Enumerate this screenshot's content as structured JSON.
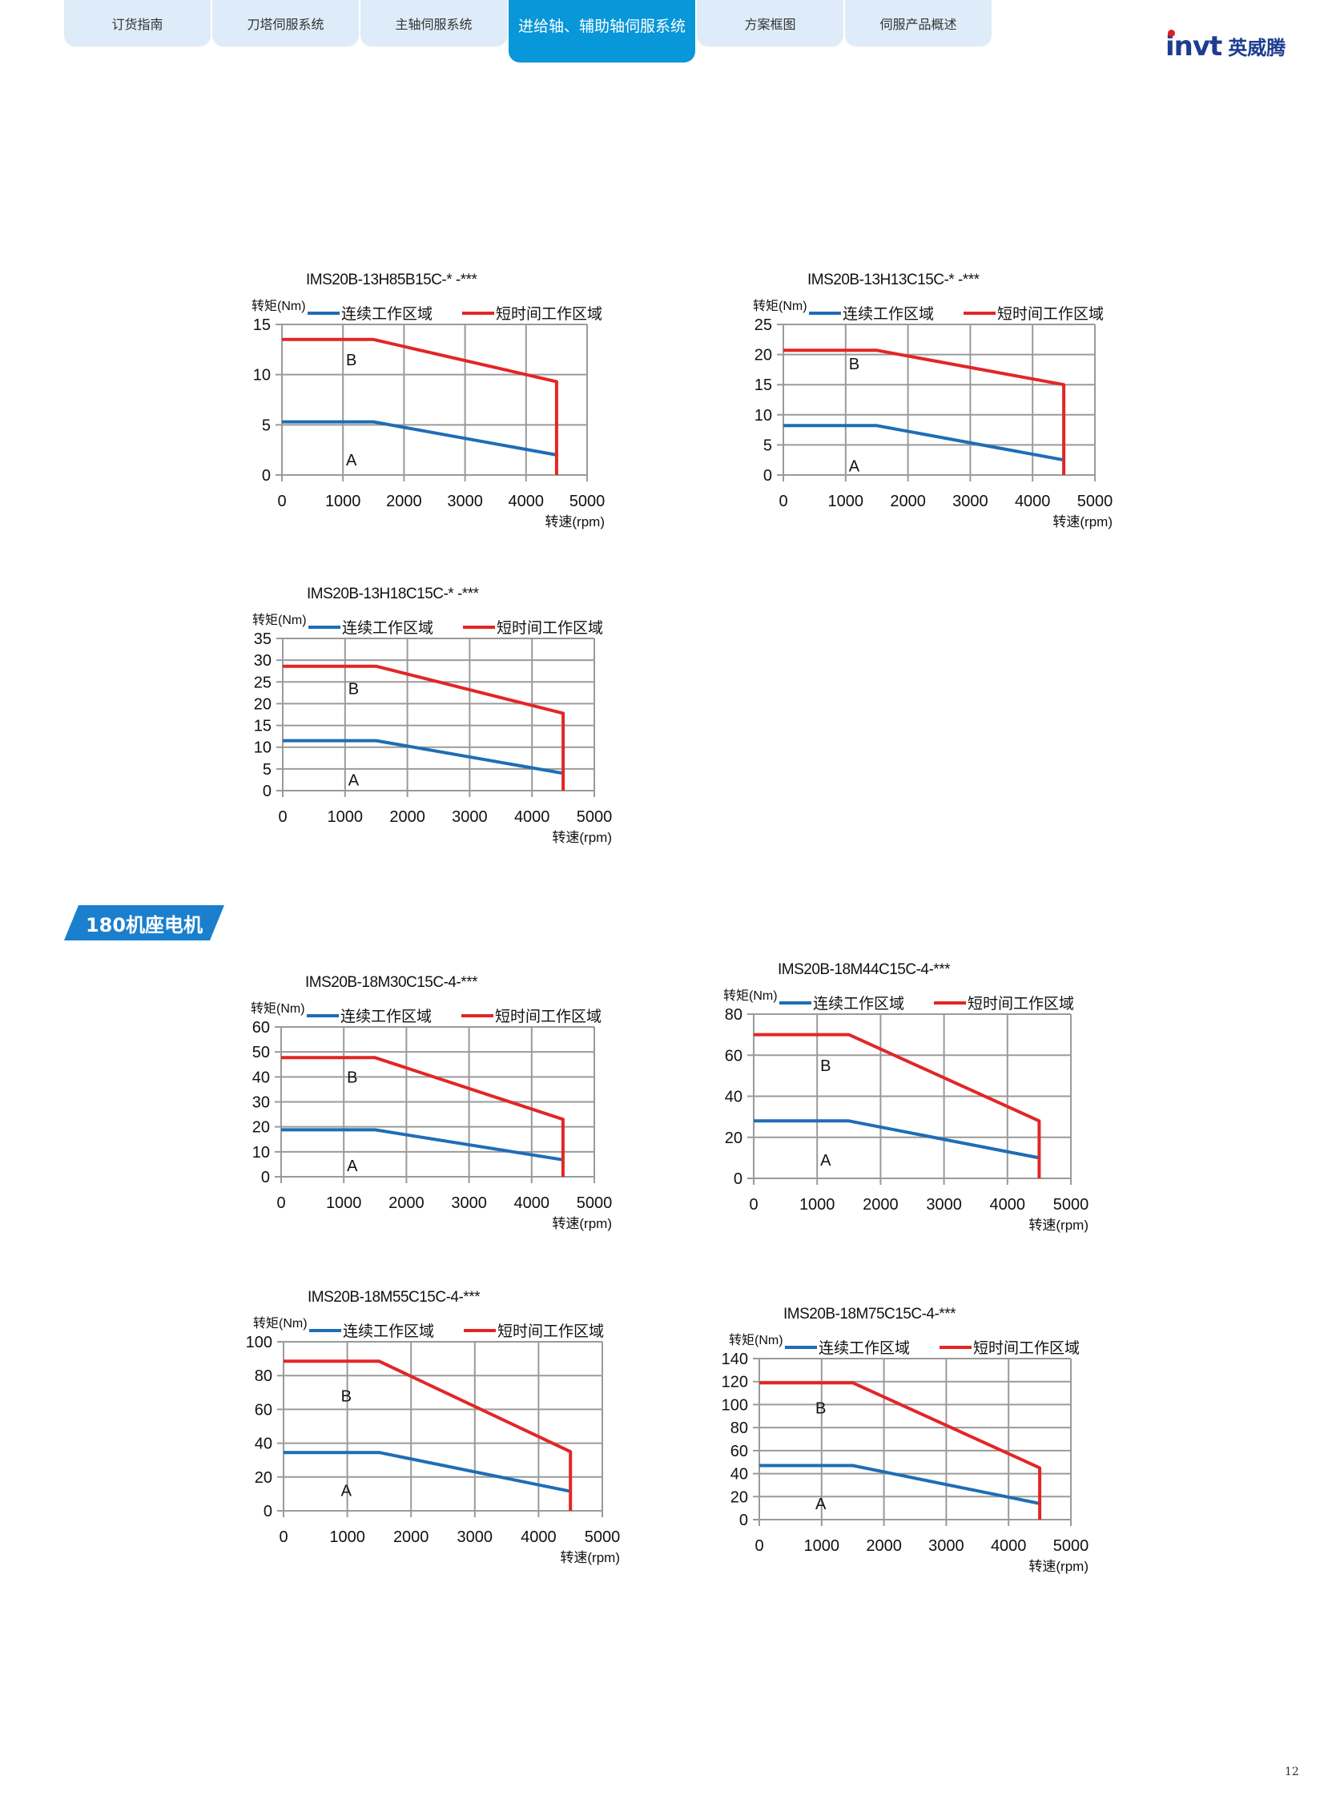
{
  "header": {
    "tabs": [
      {
        "label": "订货指南",
        "active": false
      },
      {
        "label": "刀塔伺服系统",
        "active": false
      },
      {
        "label": "主轴伺服系统",
        "active": false
      },
      {
        "label": "进给轴、辅助轴伺服系统",
        "active": true
      },
      {
        "label": "方案框图",
        "active": false
      },
      {
        "label": "伺服产品概述",
        "active": false
      }
    ],
    "logo": {
      "en": "invt",
      "cn": "英威腾"
    },
    "colors": {
      "tab_bg": "#deecf9",
      "tab_active": "#0897d8",
      "logo": "#1d3d8f",
      "logo_dot": "#e02020"
    }
  },
  "section": {
    "label": "180机座电机",
    "color": "#1a7fcc"
  },
  "page_number": "12",
  "chart_common": {
    "ylabel": "转矩(Nm)",
    "xlabel": "转速(rpm)",
    "legend": [
      "连续工作区域",
      "短时间工作区域"
    ],
    "series_colors": {
      "continuous": "#1f6db5",
      "short_time": "#e22626"
    },
    "region_labels": [
      "A",
      "B"
    ],
    "x_ticks": [
      0,
      1000,
      2000,
      3000,
      4000,
      5000
    ]
  },
  "chart_data": [
    {
      "type": "line",
      "title": "IMS20B-13H85B15C-* -***",
      "xlabel": "转速(rpm)",
      "ylabel": "转矩(Nm)",
      "xlim": [
        0,
        5000
      ],
      "ylim": [
        0,
        15
      ],
      "y_ticks": [
        0,
        5,
        10,
        15
      ],
      "legend_position": "top",
      "series": [
        {
          "name": "连续工作区域",
          "x": [
            0,
            1500,
            4500
          ],
          "y": [
            5.3,
            5.3,
            2.0
          ]
        },
        {
          "name": "短时间工作区域",
          "x": [
            0,
            1500,
            4500,
            4500
          ],
          "y": [
            13.5,
            13.5,
            9.3,
            0
          ]
        }
      ],
      "annotations": [
        {
          "text": "B",
          "x": 1050,
          "y": 11.5
        },
        {
          "text": "A",
          "x": 1050,
          "y": 1.5
        }
      ]
    },
    {
      "type": "line",
      "title": "IMS20B-13H13C15C-* -***",
      "xlabel": "转速(rpm)",
      "ylabel": "转矩(Nm)",
      "xlim": [
        0,
        5000
      ],
      "ylim": [
        0,
        25
      ],
      "y_ticks": [
        0,
        5,
        10,
        15,
        20,
        25
      ],
      "legend_position": "top",
      "series": [
        {
          "name": "连续工作区域",
          "x": [
            0,
            1500,
            4500
          ],
          "y": [
            8.2,
            8.2,
            2.5
          ]
        },
        {
          "name": "短时间工作区域",
          "x": [
            0,
            1500,
            4500,
            4500
          ],
          "y": [
            20.7,
            20.7,
            15.0,
            0
          ]
        }
      ],
      "annotations": [
        {
          "text": "B",
          "x": 1050,
          "y": 18.5
        },
        {
          "text": "A",
          "x": 1050,
          "y": 1.5
        }
      ]
    },
    {
      "type": "line",
      "title": "IMS20B-13H18C15C-* -***",
      "xlabel": "转速(rpm)",
      "ylabel": "转矩(Nm)",
      "xlim": [
        0,
        5000
      ],
      "ylim": [
        0,
        35
      ],
      "y_ticks": [
        0,
        5,
        10,
        15,
        20,
        25,
        30,
        35
      ],
      "legend_position": "top",
      "series": [
        {
          "name": "连续工作区域",
          "x": [
            0,
            1500,
            4500
          ],
          "y": [
            11.5,
            11.5,
            4.0
          ]
        },
        {
          "name": "短时间工作区域",
          "x": [
            0,
            1500,
            4500,
            4500
          ],
          "y": [
            28.6,
            28.6,
            17.8,
            0
          ]
        }
      ],
      "annotations": [
        {
          "text": "B",
          "x": 1050,
          "y": 23.5
        },
        {
          "text": "A",
          "x": 1050,
          "y": 2.5
        }
      ]
    },
    {
      "type": "line",
      "title": "IMS20B-18M30C15C-4-***",
      "xlabel": "转速(rpm)",
      "ylabel": "转矩(Nm)",
      "xlim": [
        0,
        5000
      ],
      "ylim": [
        0,
        60
      ],
      "y_ticks": [
        0,
        10,
        20,
        30,
        40,
        50,
        60
      ],
      "legend_position": "top",
      "series": [
        {
          "name": "连续工作区域",
          "x": [
            0,
            1500,
            4500
          ],
          "y": [
            18.8,
            18.8,
            6.8
          ]
        },
        {
          "name": "短时间工作区域",
          "x": [
            0,
            1500,
            4500,
            4500
          ],
          "y": [
            47.7,
            47.7,
            23.0,
            0
          ]
        }
      ],
      "annotations": [
        {
          "text": "B",
          "x": 1050,
          "y": 40
        },
        {
          "text": "A",
          "x": 1050,
          "y": 4.5
        }
      ]
    },
    {
      "type": "line",
      "title": "IMS20B-18M44C15C-4-***",
      "xlabel": "转速(rpm)",
      "ylabel": "转矩(Nm)",
      "xlim": [
        0,
        5000
      ],
      "ylim": [
        0,
        80
      ],
      "y_ticks": [
        0,
        20,
        40,
        60,
        80
      ],
      "legend_position": "top",
      "series": [
        {
          "name": "连续工作区域",
          "x": [
            0,
            1500,
            4500
          ],
          "y": [
            28.0,
            28.0,
            10.0
          ]
        },
        {
          "name": "短时间工作区域",
          "x": [
            0,
            1500,
            4500,
            4500
          ],
          "y": [
            70.0,
            70.0,
            28.0,
            0
          ]
        }
      ],
      "annotations": [
        {
          "text": "B",
          "x": 1050,
          "y": 55
        },
        {
          "text": "A",
          "x": 1050,
          "y": 9
        }
      ]
    },
    {
      "type": "line",
      "title": "IMS20B-18M55C15C-4-***",
      "xlabel": "转速(rpm)",
      "ylabel": "转矩(Nm)",
      "xlim": [
        0,
        5000
      ],
      "ylim": [
        0,
        100
      ],
      "y_ticks": [
        0,
        20,
        40,
        60,
        80,
        100
      ],
      "legend_position": "top",
      "series": [
        {
          "name": "连续工作区域",
          "x": [
            0,
            1500,
            4500
          ],
          "y": [
            34.5,
            34.5,
            11.5
          ]
        },
        {
          "name": "短时间工作区域",
          "x": [
            0,
            1500,
            4500,
            4500
          ],
          "y": [
            88.5,
            88.5,
            35.0,
            0
          ]
        }
      ],
      "annotations": [
        {
          "text": "B",
          "x": 900,
          "y": 68
        },
        {
          "text": "A",
          "x": 900,
          "y": 12
        }
      ]
    },
    {
      "type": "line",
      "title": "IMS20B-18M75C15C-4-***",
      "xlabel": "转速(rpm)",
      "ylabel": "转矩(Nm)",
      "xlim": [
        0,
        5000
      ],
      "ylim": [
        0,
        140
      ],
      "y_ticks": [
        0,
        20,
        40,
        60,
        80,
        100,
        120,
        140
      ],
      "legend_position": "top",
      "series": [
        {
          "name": "连续工作区域",
          "x": [
            0,
            1500,
            4500
          ],
          "y": [
            47.0,
            47.0,
            14.0
          ]
        },
        {
          "name": "短时间工作区域",
          "x": [
            0,
            1500,
            4500,
            4500
          ],
          "y": [
            119.0,
            119.0,
            45.0,
            0
          ]
        }
      ],
      "annotations": [
        {
          "text": "B",
          "x": 900,
          "y": 97
        },
        {
          "text": "A",
          "x": 900,
          "y": 14
        }
      ]
    }
  ]
}
